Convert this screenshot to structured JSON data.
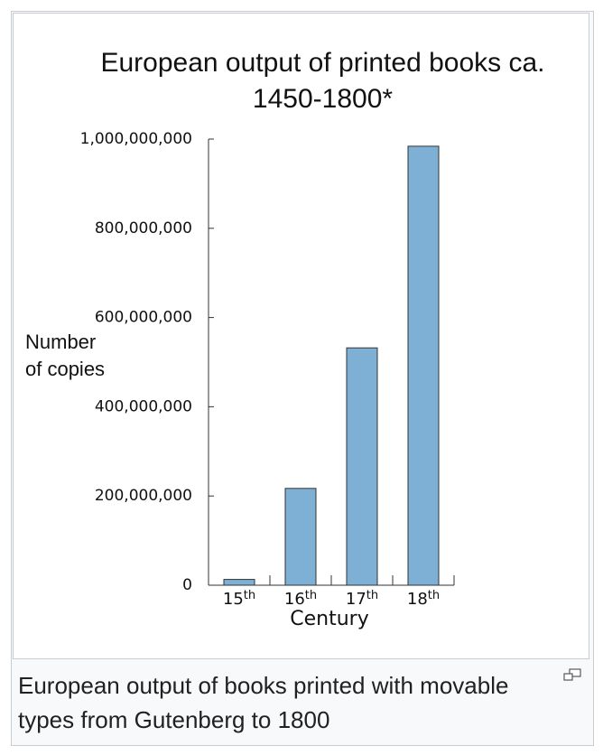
{
  "chart_data": {
    "type": "bar",
    "title": "European output of printed books ca. 1450-1800*",
    "xlabel": "Century",
    "ylabel": "Number of copies",
    "categories": [
      "15th",
      "16th",
      "17th",
      "18th"
    ],
    "values": [
      13000000,
      217000000,
      532000000,
      984000000
    ],
    "color": "#7eb0d5",
    "ylim": [
      0,
      1000000000
    ],
    "yticks": [
      0,
      {
        "value": 200000000,
        "label": "200,000,000"
      },
      {
        "value": 400000000,
        "label": "400,000,000"
      },
      {
        "value": 600000000,
        "label": "600,000,000"
      },
      {
        "value": 800000000,
        "label": "800,000,000"
      },
      {
        "value": 1000000000,
        "label": "1,000,000,000"
      }
    ]
  },
  "caption": "European output of books printed with movable types from Gutenberg to 1800"
}
